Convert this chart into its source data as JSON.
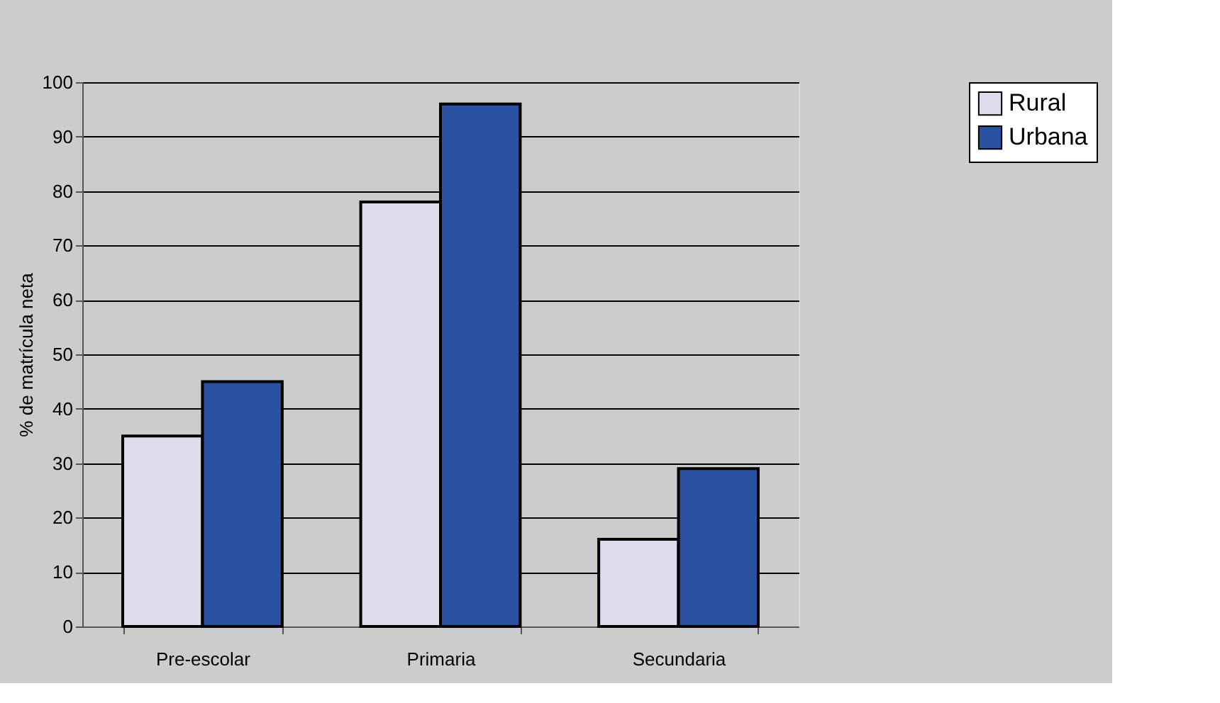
{
  "chart_data": {
    "type": "bar",
    "ylabel": "% de matrícula neta",
    "categories": [
      "Pre-escolar",
      "Primaria",
      "Secundaria"
    ],
    "series": [
      {
        "name": "Rural",
        "color": "#dcdcec",
        "values": [
          35,
          78,
          16
        ]
      },
      {
        "name": "Urbana",
        "color": "#2b51a3",
        "values": [
          45,
          96,
          29
        ]
      }
    ],
    "ylim": [
      0,
      100
    ],
    "yticks": [
      0,
      10,
      20,
      30,
      40,
      50,
      60,
      70,
      80,
      90,
      100
    ],
    "grid": "y",
    "legend": "right"
  }
}
